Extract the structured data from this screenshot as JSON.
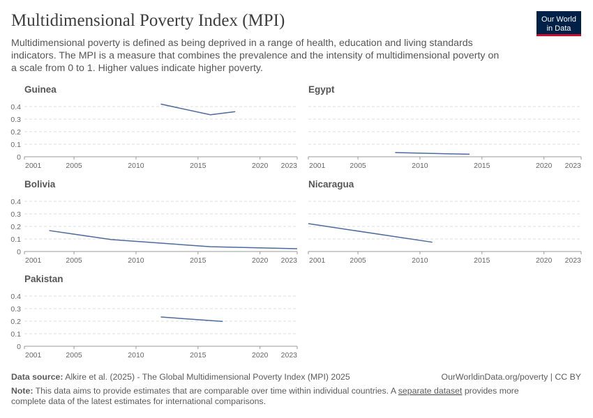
{
  "header": {
    "title": "Multidimensional Poverty Index (MPI)",
    "subtitle": [
      "Multidimensional poverty is defined as being deprived in a range of health, education and living standards",
      "indicators. The MPI is a measure that combines the prevalence and the intensity of multidimensional poverty on",
      "a scale from 0 to 1. Higher values indicate higher poverty."
    ],
    "logo": [
      "Our World",
      "in Data"
    ]
  },
  "chart_data": [
    {
      "type": "line",
      "title": "Guinea",
      "x": [
        2012,
        2016,
        2018
      ],
      "values": [
        0.42,
        0.335,
        0.36
      ],
      "color": "#4c6a9c",
      "xlim": [
        2001,
        2023
      ],
      "xticks": [
        2001,
        2005,
        2010,
        2015,
        2020,
        2023
      ],
      "ylim": [
        0,
        0.4
      ],
      "yticks": [
        0,
        0.1,
        0.2,
        0.3,
        0.4
      ],
      "grid": true
    },
    {
      "type": "line",
      "title": "Egypt",
      "x": [
        2008,
        2014
      ],
      "values": [
        0.033,
        0.02
      ],
      "color": "#4c6a9c",
      "xlim": [
        2001,
        2023
      ],
      "xticks": [
        2001,
        2005,
        2010,
        2015,
        2020,
        2023
      ],
      "ylim": [
        0,
        0.4
      ],
      "yticks": [
        0,
        0.1,
        0.2,
        0.3,
        0.4
      ],
      "grid": true
    },
    {
      "type": "line",
      "title": "Bolivia",
      "x": [
        2003,
        2008,
        2016,
        2023
      ],
      "values": [
        0.167,
        0.095,
        0.038,
        0.022
      ],
      "color": "#4c6a9c",
      "xlim": [
        2001,
        2023
      ],
      "xticks": [
        2001,
        2005,
        2010,
        2015,
        2020,
        2023
      ],
      "ylim": [
        0,
        0.4
      ],
      "yticks": [
        0,
        0.1,
        0.2,
        0.3,
        0.4
      ],
      "grid": true
    },
    {
      "type": "line",
      "title": "Nicaragua",
      "x": [
        2001,
        2011
      ],
      "values": [
        0.222,
        0.074
      ],
      "color": "#4c6a9c",
      "xlim": [
        2001,
        2023
      ],
      "xticks": [
        2001,
        2005,
        2010,
        2015,
        2020,
        2023
      ],
      "ylim": [
        0,
        0.4
      ],
      "yticks": [
        0,
        0.1,
        0.2,
        0.3,
        0.4
      ],
      "grid": true
    },
    {
      "type": "line",
      "title": "Pakistan",
      "x": [
        2012,
        2017
      ],
      "values": [
        0.233,
        0.198
      ],
      "color": "#4c6a9c",
      "xlim": [
        2001,
        2023
      ],
      "xticks": [
        2001,
        2005,
        2010,
        2015,
        2020,
        2023
      ],
      "ylim": [
        0,
        0.4
      ],
      "yticks": [
        0,
        0.1,
        0.2,
        0.3,
        0.4
      ],
      "grid": true
    }
  ],
  "footer": {
    "source_label": "Data source:",
    "source": "Alkire et al. (2025) - The Global Multidimensional Poverty Index (MPI) 2025",
    "license": "OurWorldinData.org/poverty | CC BY",
    "note_label": "Note:",
    "note_before": "This data aims to provide estimates that are comparable over time within individual countries. A",
    "note_link": "separate dataset",
    "note_after": "provides more",
    "note_line2": "complete data of the latest estimates for international comparisons."
  }
}
